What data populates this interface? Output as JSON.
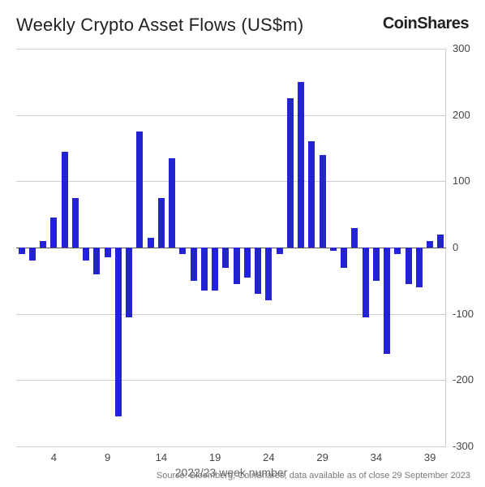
{
  "title": "Weekly Crypto Asset Flows (US$m)",
  "brand": "CoinShares",
  "source": "Source: Bloomberg, CoinShares, data available as of close 29 September 2023",
  "chart": {
    "type": "bar",
    "x_axis_title": "2022/23 week number",
    "x_ticks": [
      4,
      9,
      14,
      19,
      24,
      29,
      34,
      39
    ],
    "ylim": [
      -300,
      300
    ],
    "y_ticks": [
      -300,
      -200,
      -100,
      0,
      100,
      200,
      300
    ],
    "grid_color": "#d0cec8",
    "zero_line_color": "#555555",
    "bar_color": "#2323d4",
    "background_color": "#ffffff",
    "bar_width_ratio": 0.62,
    "title_fontsize": 22,
    "label_fontsize": 13,
    "values": [
      -10,
      -20,
      10,
      45,
      145,
      75,
      -20,
      -40,
      -15,
      -255,
      -105,
      175,
      15,
      75,
      135,
      -10,
      -50,
      -65,
      -65,
      -30,
      -55,
      -45,
      -70,
      -80,
      -10,
      225,
      250,
      160,
      140,
      -5,
      -30,
      30,
      -105,
      -50,
      -160,
      -10,
      -55,
      -60,
      10,
      20
    ],
    "n_bars": 40
  }
}
